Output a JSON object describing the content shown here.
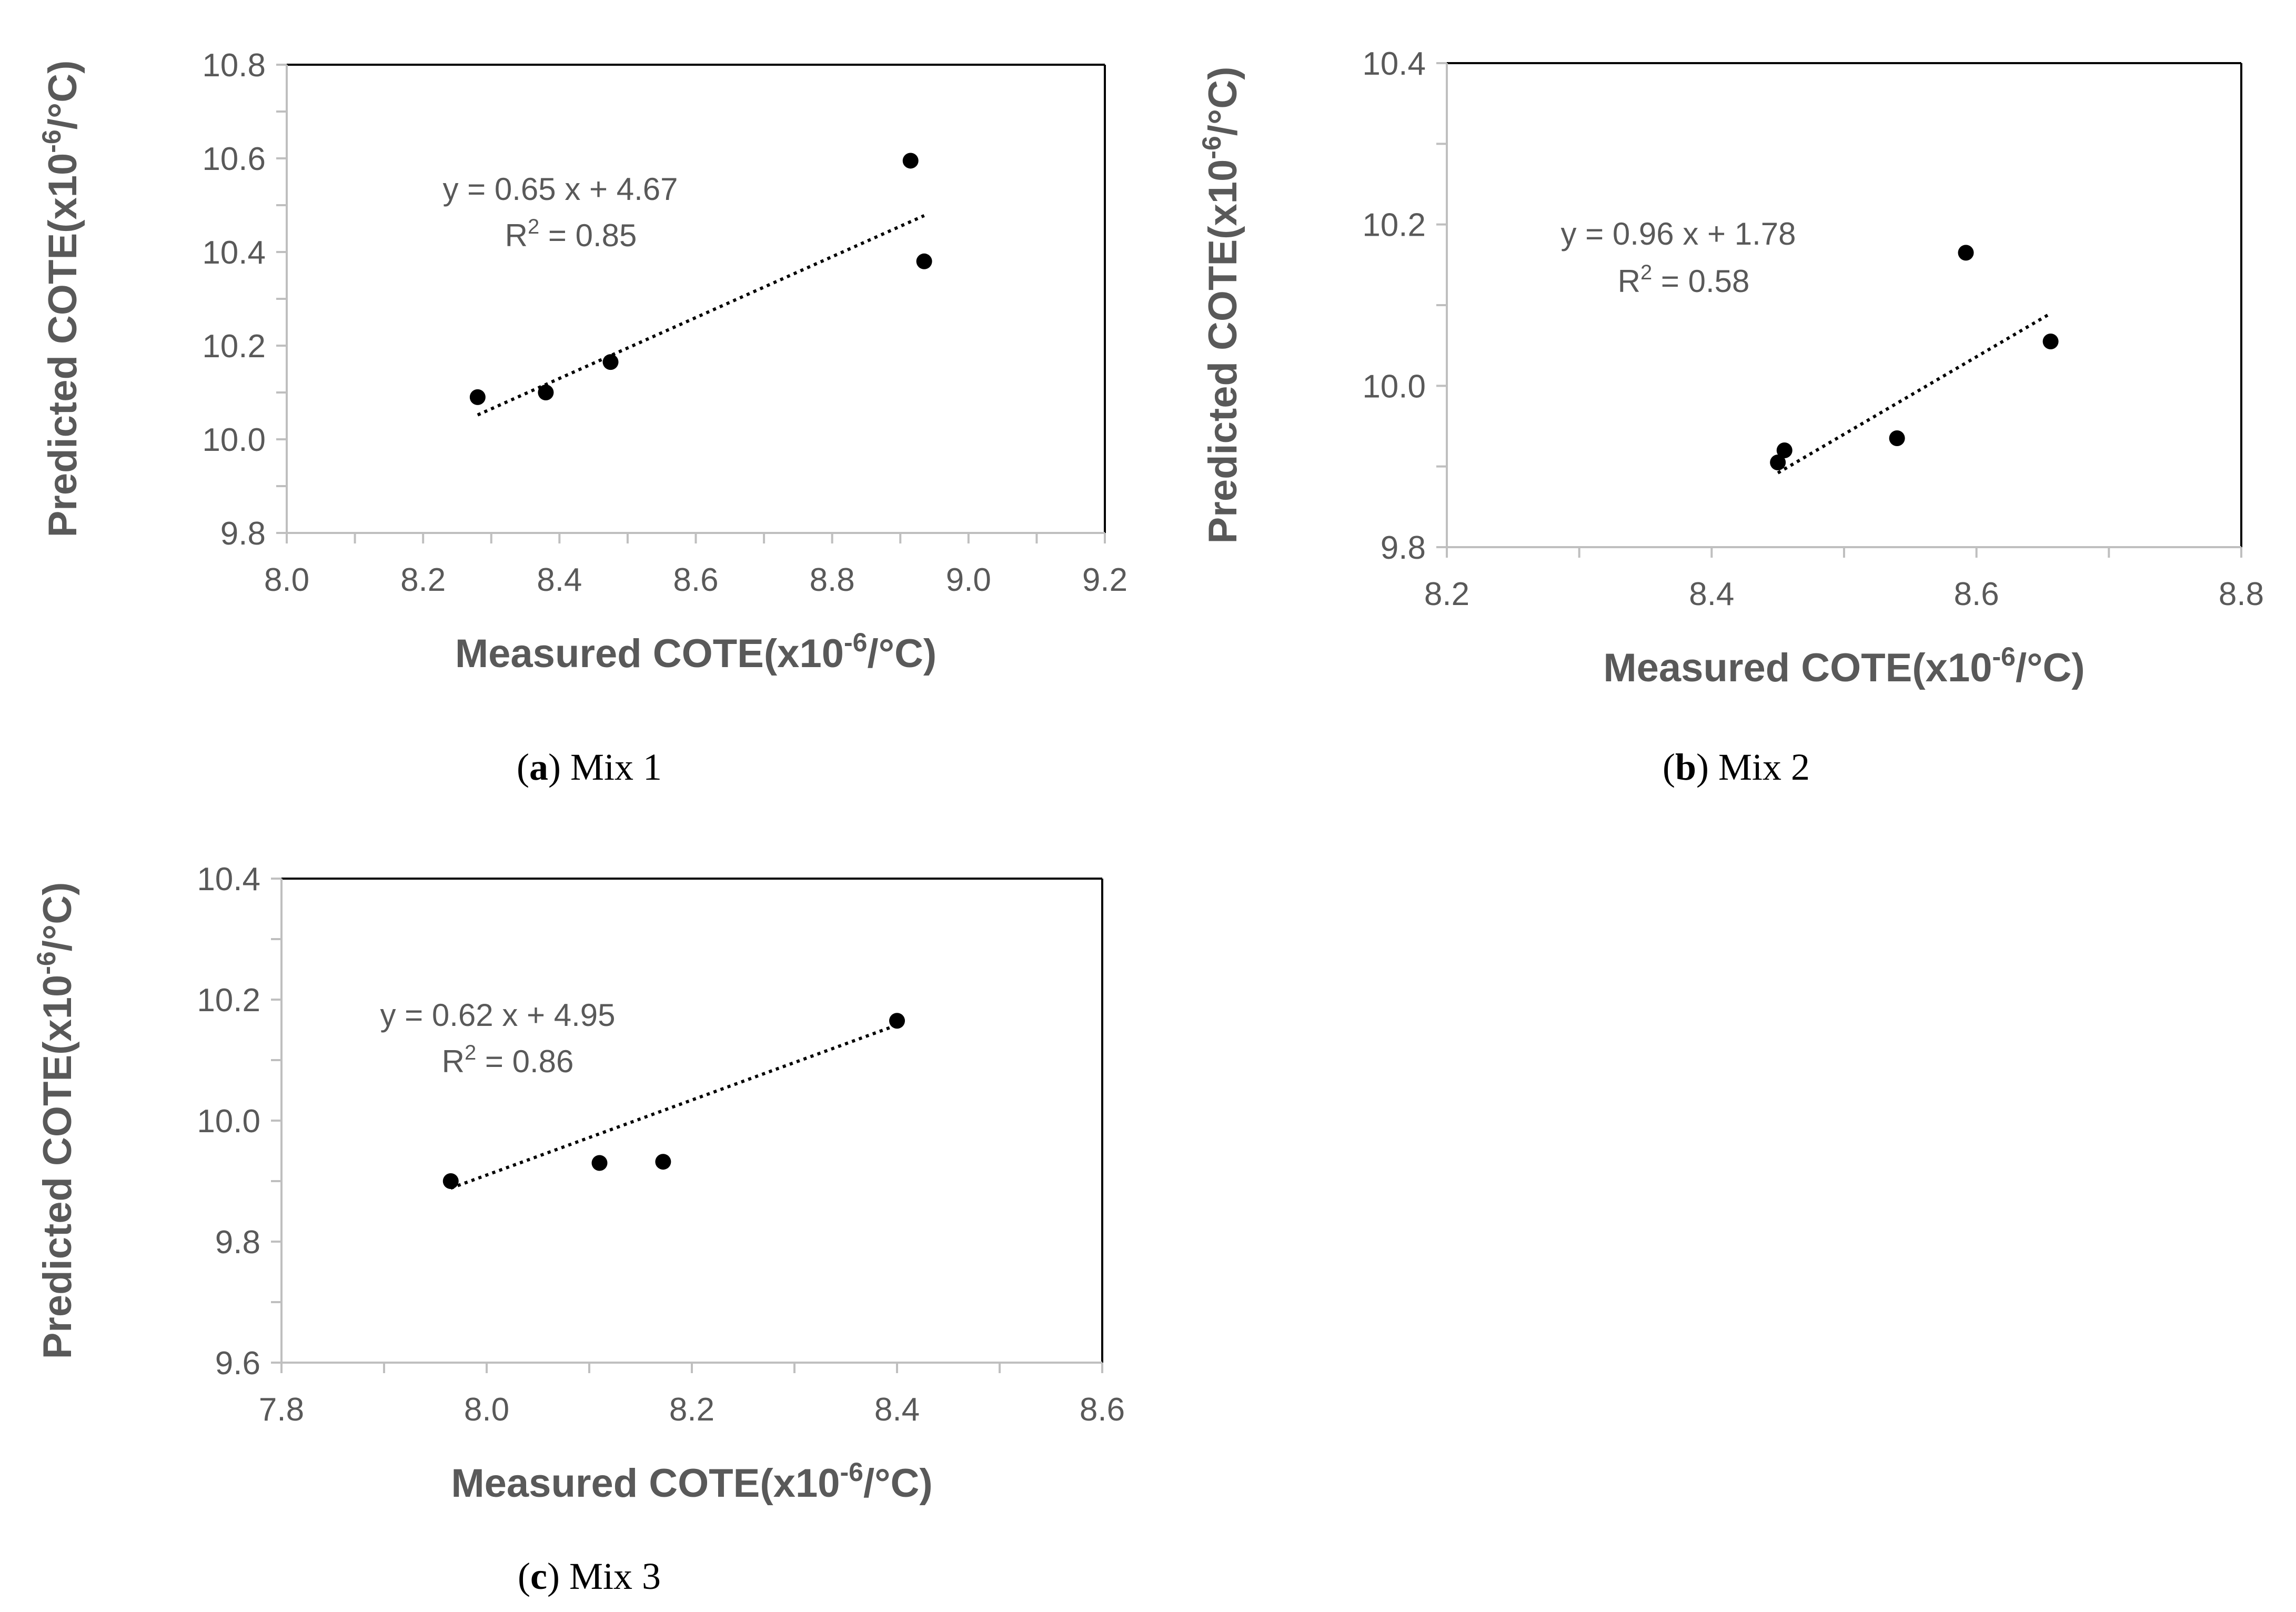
{
  "figure": {
    "captions": [
      {
        "letter": "a",
        "text": " Mix 1"
      },
      {
        "letter": "b",
        "text": " Mix 2"
      },
      {
        "letter": "c",
        "text": " Mix 3"
      }
    ]
  },
  "chart_data": [
    {
      "type": "scatter",
      "title": "",
      "xlabel": "Measured COTE(x10-6/°C)",
      "ylabel": "Predicted COTE(x10-6/°C)",
      "xlim": [
        8.0,
        9.2
      ],
      "ylim": [
        9.8,
        10.8
      ],
      "xticks": [
        "8.0",
        "8.2",
        "8.4",
        "8.6",
        "8.8",
        "9.0",
        "9.2"
      ],
      "yticks": [
        "9.8",
        "10.0",
        "10.2",
        "10.4",
        "10.6",
        "10.8"
      ],
      "x_minor_step": 0.1,
      "y_minor_step": 0.1,
      "points": [
        {
          "x": 8.28,
          "y": 10.09
        },
        {
          "x": 8.38,
          "y": 10.1
        },
        {
          "x": 8.475,
          "y": 10.165
        },
        {
          "x": 8.915,
          "y": 10.595
        },
        {
          "x": 8.935,
          "y": 10.38
        }
      ],
      "trendline": {
        "slope": 0.65,
        "intercept": 4.67,
        "x_range": [
          8.28,
          8.935
        ]
      },
      "equation": "y = 0.65 x + 4.67",
      "r2_prefix": "R",
      "r2_sup": "2",
      "r2_value": " = 0.85"
    },
    {
      "type": "scatter",
      "title": "",
      "xlabel": "Measured COTE(x10-6/°C)",
      "ylabel": "Predicted COTE(x10-6/°C)",
      "xlim": [
        8.2,
        8.8
      ],
      "ylim": [
        9.8,
        10.4
      ],
      "xticks": [
        "8.2",
        "8.4",
        "8.6",
        "8.8"
      ],
      "yticks": [
        "9.8",
        "10.0",
        "10.2",
        "10.4"
      ],
      "x_minor_step": 0.1,
      "y_minor_step": 0.1,
      "points": [
        {
          "x": 8.45,
          "y": 9.905
        },
        {
          "x": 8.455,
          "y": 9.92
        },
        {
          "x": 8.54,
          "y": 9.935
        },
        {
          "x": 8.592,
          "y": 10.165
        },
        {
          "x": 8.656,
          "y": 10.055
        }
      ],
      "trendline": {
        "slope": 0.96,
        "intercept": 1.78,
        "x_range": [
          8.45,
          8.656
        ]
      },
      "equation": "y = 0.96 x + 1.78",
      "r2_prefix": "R",
      "r2_sup": "2",
      "r2_value": " = 0.58"
    },
    {
      "type": "scatter",
      "title": "",
      "xlabel": "Measured COTE(x10-6/°C)",
      "ylabel": "Predicted COTE(x10-6/°C)",
      "xlim": [
        7.8,
        8.6
      ],
      "ylim": [
        9.6,
        10.4
      ],
      "xticks": [
        "7.8",
        "8.0",
        "8.2",
        "8.4",
        "8.6"
      ],
      "yticks": [
        "9.6",
        "9.8",
        "10.0",
        "10.2",
        "10.4"
      ],
      "x_minor_step": 0.1,
      "y_minor_step": 0.1,
      "points": [
        {
          "x": 7.965,
          "y": 9.9
        },
        {
          "x": 8.11,
          "y": 9.93
        },
        {
          "x": 8.172,
          "y": 9.932
        },
        {
          "x": 8.4,
          "y": 10.165
        }
      ],
      "trendline": {
        "slope": 0.62,
        "intercept": 4.95,
        "x_range": [
          7.965,
          8.4
        ]
      },
      "equation": "y = 0.62 x + 4.95",
      "r2_prefix": "R",
      "r2_sup": "2",
      "r2_value": " = 0.86"
    }
  ]
}
